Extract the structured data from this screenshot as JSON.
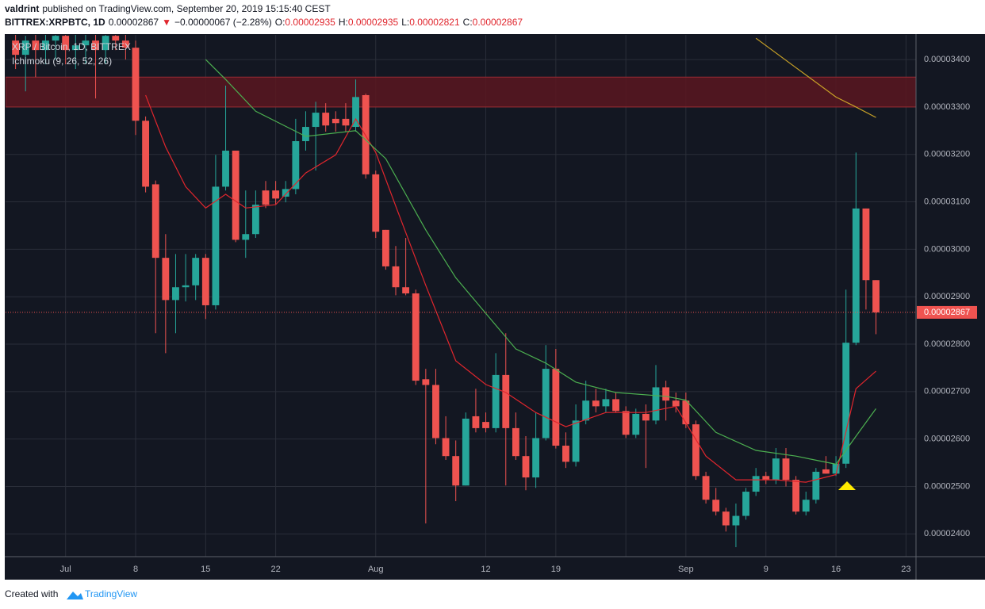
{
  "header": {
    "author": "valdrint",
    "published": "published on TradingView.com, September 20, 2019 15:15:40 CEST",
    "symbol": "BITTREX:XRPBTC, 1D",
    "last": "0.00002867",
    "arrow": "▼",
    "change": "−0.00000067 (−2.28%)",
    "o_label": "O:",
    "o": "0.00002935",
    "h_label": "H:",
    "h": "0.00002935",
    "l_label": "L:",
    "l": "0.00002821",
    "c_label": "C:",
    "c": "0.00002867"
  },
  "chart_data": {
    "type": "candlestick",
    "legend_title": "XRP / Bitcoin, 1D, BITTREX",
    "indicator": "Ichimoku (9, 26, 52, 26)",
    "up_color": "#26a69a",
    "down_color": "#ef5350",
    "background": "#131722",
    "grid": true,
    "x": [
      "2019-06-26",
      "2019-06-27",
      "2019-06-28",
      "2019-06-29",
      "2019-06-30",
      "2019-07-01",
      "2019-07-02",
      "2019-07-03",
      "2019-07-04",
      "2019-07-05",
      "2019-07-06",
      "2019-07-07",
      "2019-07-08",
      "2019-07-09",
      "2019-07-10",
      "2019-07-11",
      "2019-07-12",
      "2019-07-13",
      "2019-07-14",
      "2019-07-15",
      "2019-07-16",
      "2019-07-17",
      "2019-07-18",
      "2019-07-19",
      "2019-07-20",
      "2019-07-21",
      "2019-07-22",
      "2019-07-23",
      "2019-07-24",
      "2019-07-25",
      "2019-07-26",
      "2019-07-27",
      "2019-07-28",
      "2019-07-29",
      "2019-07-30",
      "2019-07-31",
      "2019-08-01",
      "2019-08-02",
      "2019-08-03",
      "2019-08-04",
      "2019-08-05",
      "2019-08-06",
      "2019-08-07",
      "2019-08-08",
      "2019-08-09",
      "2019-08-10",
      "2019-08-11",
      "2019-08-12",
      "2019-08-13",
      "2019-08-14",
      "2019-08-15",
      "2019-08-16",
      "2019-08-17",
      "2019-08-18",
      "2019-08-19",
      "2019-08-20",
      "2019-08-21",
      "2019-08-22",
      "2019-08-23",
      "2019-08-24",
      "2019-08-25",
      "2019-08-26",
      "2019-08-27",
      "2019-08-28",
      "2019-08-29",
      "2019-08-30",
      "2019-08-31",
      "2019-09-01",
      "2019-09-02",
      "2019-09-03",
      "2019-09-04",
      "2019-09-05",
      "2019-09-06",
      "2019-09-07",
      "2019-09-08",
      "2019-09-09",
      "2019-09-10",
      "2019-09-11",
      "2019-09-12",
      "2019-09-13",
      "2019-09-14",
      "2019-09-15",
      "2019-09-16",
      "2019-09-17",
      "2019-09-18",
      "2019-09-19",
      "2019-09-20"
    ],
    "open": [
      3.44e-05,
      3.41e-05,
      3.44e-05,
      3.42e-05,
      3.44e-05,
      3.45e-05,
      3.42e-05,
      3.43e-05,
      3.44e-05,
      3.42e-05,
      3.45e-05,
      3.44e-05,
      3.425e-05,
      3.271e-05,
      3.137e-05,
      2.982e-05,
      2.893e-05,
      2.92e-05,
      2.924e-05,
      2.982e-05,
      2.882e-05,
      3.132e-05,
      3.208e-05,
      3.02e-05,
      3.032e-05,
      3.124e-05,
      3.124e-05,
      3.111e-05,
      3.127e-05,
      3.228e-05,
      3.258e-05,
      3.288e-05,
      3.275e-05,
      3.275e-05,
      3.258e-05,
      3.325e-05,
      3.158e-05,
      3.041e-05,
      2.964e-05,
      2.92e-05,
      2.907e-05,
      2.726e-05,
      2.714e-05,
      2.602e-05,
      2.564e-05,
      2.502e-05,
      2.648e-05,
      2.636e-05,
      2.623e-05,
      2.735e-05,
      2.623e-05,
      2.564e-05,
      2.519e-05,
      2.602e-05,
      2.748e-05,
      2.586e-05,
      2.552e-05,
      2.639e-05,
      2.681e-05,
      2.669e-05,
      2.684e-05,
      2.659e-05,
      2.609e-05,
      2.653e-05,
      2.639e-05,
      2.709e-05,
      2.681e-05,
      2.681e-05,
      2.631e-05,
      2.522e-05,
      2.472e-05,
      2.447e-05,
      2.418e-05,
      2.438e-05,
      2.489e-05,
      2.522e-05,
      2.514e-05,
      2.559e-05,
      2.514e-05,
      2.447e-05,
      2.472e-05,
      2.536e-05,
      2.527e-05,
      2.548e-05,
      2.803e-05,
      3.086e-05,
      2.935e-05
    ],
    "high": [
      3.47e-05,
      3.45e-05,
      3.46e-05,
      3.46e-05,
      3.47e-05,
      3.48e-05,
      3.46e-05,
      3.47e-05,
      3.46e-05,
      3.46e-05,
      3.48e-05,
      3.46e-05,
      3.44e-05,
      3.28e-05,
      3.145e-05,
      3.032e-05,
      2.99e-05,
      2.99e-05,
      2.99e-05,
      2.99e-05,
      3.199e-05,
      3.345e-05,
      3.208e-05,
      3.124e-05,
      3.124e-05,
      3.144e-05,
      3.144e-05,
      3.144e-05,
      3.275e-05,
      3.291e-05,
      3.311e-05,
      3.308e-05,
      3.291e-05,
      3.308e-05,
      3.358e-05,
      3.328e-05,
      3.166e-05,
      3.041e-05,
      3.007e-05,
      3.024e-05,
      2.915e-05,
      2.748e-05,
      2.748e-05,
      2.648e-05,
      2.597e-05,
      2.656e-05,
      2.706e-05,
      2.656e-05,
      2.781e-05,
      2.823e-05,
      2.656e-05,
      2.606e-05,
      2.656e-05,
      2.798e-05,
      2.79e-05,
      2.614e-05,
      2.673e-05,
      2.723e-05,
      2.706e-05,
      2.706e-05,
      2.698e-05,
      2.669e-05,
      2.664e-05,
      2.673e-05,
      2.756e-05,
      2.723e-05,
      2.698e-05,
      2.698e-05,
      2.639e-05,
      2.531e-05,
      2.497e-05,
      2.455e-05,
      2.464e-05,
      2.497e-05,
      2.539e-05,
      2.531e-05,
      2.581e-05,
      2.581e-05,
      2.522e-05,
      2.489e-05,
      2.539e-05,
      2.564e-05,
      2.564e-05,
      2.915e-05,
      3.204e-05,
      3.086e-05,
      2.935e-05
    ],
    "low": [
      3.38e-05,
      3.333e-05,
      3.363e-05,
      3.39e-05,
      3.4e-05,
      3.39e-05,
      3.38e-05,
      3.39e-05,
      3.318e-05,
      3.39e-05,
      3.42e-05,
      3.4e-05,
      3.241e-05,
      3.12e-05,
      2.823e-05,
      2.781e-05,
      2.823e-05,
      2.89e-05,
      2.893e-05,
      2.853e-05,
      2.873e-05,
      3.124e-05,
      3.015e-05,
      2.982e-05,
      3.024e-05,
      3.087e-05,
      3.094e-05,
      3.099e-05,
      3.116e-05,
      3.208e-05,
      3.166e-05,
      3.248e-05,
      3.248e-05,
      3.248e-05,
      3.248e-05,
      3.149e-05,
      3.024e-05,
      2.957e-05,
      2.903e-05,
      2.903e-05,
      2.714e-05,
      2.422e-05,
      2.589e-05,
      2.556e-05,
      2.469e-05,
      2.502e-05,
      2.614e-05,
      2.614e-05,
      2.614e-05,
      2.502e-05,
      2.556e-05,
      2.492e-05,
      2.497e-05,
      2.597e-05,
      2.58e-05,
      2.539e-05,
      2.542e-05,
      2.631e-05,
      2.656e-05,
      2.656e-05,
      2.656e-05,
      2.602e-05,
      2.602e-05,
      2.539e-05,
      2.631e-05,
      2.639e-05,
      2.656e-05,
      2.623e-05,
      2.514e-05,
      2.464e-05,
      2.439e-05,
      2.405e-05,
      2.372e-05,
      2.43e-05,
      2.48e-05,
      2.505e-05,
      2.505e-05,
      2.5e-05,
      2.441e-05,
      2.439e-05,
      2.464e-05,
      2.527e-05,
      2.522e-05,
      2.539e-05,
      2.798e-05,
      2.873e-05,
      2.821e-05
    ],
    "close": [
      3.41e-05,
      3.44e-05,
      3.42e-05,
      3.44e-05,
      3.45e-05,
      3.42e-05,
      3.43e-05,
      3.44e-05,
      3.42e-05,
      3.45e-05,
      3.44e-05,
      3.425e-05,
      3.271e-05,
      3.132e-05,
      2.982e-05,
      2.893e-05,
      2.92e-05,
      2.924e-05,
      2.982e-05,
      2.882e-05,
      3.132e-05,
      3.208e-05,
      3.02e-05,
      3.032e-05,
      3.094e-05,
      3.094e-05,
      3.107e-05,
      3.127e-05,
      3.228e-05,
      3.258e-05,
      3.288e-05,
      3.261e-05,
      3.266e-05,
      3.261e-05,
      3.321e-05,
      3.158e-05,
      3.037e-05,
      2.964e-05,
      2.92e-05,
      2.907e-05,
      2.723e-05,
      2.714e-05,
      2.602e-05,
      2.564e-05,
      2.502e-05,
      2.643e-05,
      2.623e-05,
      2.623e-05,
      2.735e-05,
      2.623e-05,
      2.564e-05,
      2.519e-05,
      2.602e-05,
      2.748e-05,
      2.586e-05,
      2.552e-05,
      2.639e-05,
      2.681e-05,
      2.669e-05,
      2.684e-05,
      2.659e-05,
      2.609e-05,
      2.653e-05,
      2.639e-05,
      2.709e-05,
      2.681e-05,
      2.669e-05,
      2.631e-05,
      2.522e-05,
      2.472e-05,
      2.447e-05,
      2.418e-05,
      2.438e-05,
      2.489e-05,
      2.522e-05,
      2.514e-05,
      2.559e-05,
      2.514e-05,
      2.447e-05,
      2.472e-05,
      2.531e-05,
      2.527e-05,
      2.548e-05,
      2.803e-05,
      3.086e-05,
      2.935e-05,
      2.867e-05
    ],
    "series": [
      {
        "color": "#e0262d",
        "x": [
          "2019-07-09",
          "2019-07-11",
          "2019-07-13",
          "2019-07-15",
          "2019-07-17",
          "2019-07-19",
          "2019-07-22",
          "2019-07-25",
          "2019-07-28",
          "2019-07-30",
          "2019-08-01",
          "2019-08-03",
          "2019-08-06",
          "2019-08-09",
          "2019-08-12",
          "2019-08-14",
          "2019-08-17",
          "2019-08-20",
          "2019-08-24",
          "2019-08-28",
          "2019-08-31",
          "2019-09-03",
          "2019-09-06",
          "2019-09-10",
          "2019-09-13",
          "2019-09-16",
          "2019-09-18",
          "2019-09-20"
        ],
        "values": [
          3.325e-05,
          3.216e-05,
          3.132e-05,
          3.087e-05,
          3.116e-05,
          3.087e-05,
          3.094e-05,
          3.161e-05,
          3.199e-05,
          3.275e-05,
          3.204e-05,
          3.091e-05,
          2.924e-05,
          2.765e-05,
          2.715e-05,
          2.698e-05,
          2.656e-05,
          2.626e-05,
          2.656e-05,
          2.656e-05,
          2.669e-05,
          2.564e-05,
          2.514e-05,
          2.514e-05,
          2.509e-05,
          2.525e-05,
          2.706e-05,
          2.743e-05
        ]
      },
      {
        "color": "#4caf50",
        "x": [
          "2019-07-15",
          "2019-07-17",
          "2019-07-20",
          "2019-07-25",
          "2019-07-30",
          "2019-08-02",
          "2019-08-06",
          "2019-08-09",
          "2019-08-12",
          "2019-08-15",
          "2019-08-18",
          "2019-08-21",
          "2019-08-25",
          "2019-08-30",
          "2019-09-01",
          "2019-09-04",
          "2019-09-08",
          "2019-09-12",
          "2019-09-16",
          "2019-09-18",
          "2019-09-20"
        ],
        "values": [
          3.4e-05,
          3.358e-05,
          3.291e-05,
          3.238e-05,
          3.25e-05,
          3.191e-05,
          3.041e-05,
          2.94e-05,
          2.865e-05,
          2.79e-05,
          2.76e-05,
          2.72e-05,
          2.698e-05,
          2.69e-05,
          2.682e-05,
          2.614e-05,
          2.576e-05,
          2.564e-05,
          2.547e-05,
          2.606e-05,
          2.664e-05
        ]
      },
      {
        "color": "#c9a227",
        "x": [
          "2019-09-08",
          "2019-09-12",
          "2019-09-16",
          "2019-09-18",
          "2019-09-20"
        ],
        "values": [
          3.445e-05,
          3.383e-05,
          3.321e-05,
          3.3e-05,
          3.278e-05
        ]
      }
    ],
    "zone": {
      "from": 3.3e-05,
      "to": 3.363e-05,
      "color": "#5a1620"
    },
    "last_price": {
      "value": 2.867e-05,
      "label": "0.00002867",
      "color": "#ef5350"
    },
    "xlim": [
      "2019-06-25",
      "2019-09-24"
    ],
    "xticks": [
      {
        "value": "2019-07-01",
        "label": "Jul"
      },
      {
        "value": "2019-07-08",
        "label": "8"
      },
      {
        "value": "2019-07-15",
        "label": "15"
      },
      {
        "value": "2019-07-22",
        "label": "22"
      },
      {
        "value": "2019-08-01",
        "label": "Aug"
      },
      {
        "value": "2019-08-12",
        "label": "12"
      },
      {
        "value": "2019-08-19",
        "label": "19"
      },
      {
        "value": "2019-08-26",
        "label": null
      },
      {
        "value": "2019-09-01",
        "label": "Sep"
      },
      {
        "value": "2019-09-09",
        "label": "9"
      },
      {
        "value": "2019-09-16",
        "label": "16"
      },
      {
        "value": "2019-09-23",
        "label": "23"
      }
    ],
    "ylim": [
      2.352e-05,
      3.452e-05
    ],
    "yticks": [
      {
        "value": 2.4e-05,
        "label": "0.00002400"
      },
      {
        "value": 2.5e-05,
        "label": "0.00002500"
      },
      {
        "value": 2.6e-05,
        "label": "0.00002600"
      },
      {
        "value": 2.7e-05,
        "label": "0.00002700"
      },
      {
        "value": 2.8e-05,
        "label": "0.00002800"
      },
      {
        "value": 2.9e-05,
        "label": "0.00002900"
      },
      {
        "value": 3e-05,
        "label": "0.00003000"
      },
      {
        "value": 3.1e-05,
        "label": "0.00003100"
      },
      {
        "value": 3.2e-05,
        "label": "0.00003200"
      },
      {
        "value": 3.3e-05,
        "label": "0.00003300"
      },
      {
        "value": 3.4e-05,
        "label": "0.00003400"
      }
    ]
  },
  "footer": {
    "text": "Created with",
    "brand": "TradingView"
  }
}
